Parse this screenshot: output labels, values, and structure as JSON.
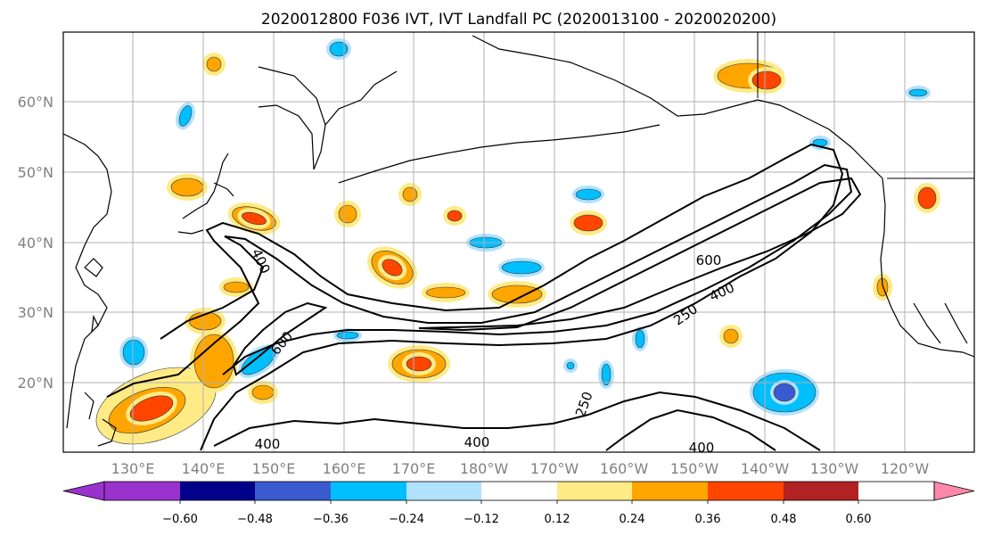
{
  "title": "2020012800 F036 IVT, IVT Landfall PC (2020013100 - 2020020200)",
  "map": {
    "lon_range": [
      "125°E",
      "115°W"
    ],
    "lat_range": [
      "10°N",
      "70°N"
    ],
    "lat_ticks": [
      "20°N",
      "30°N",
      "40°N",
      "50°N",
      "60°N"
    ],
    "lon_ticks": [
      "130°E",
      "140°E",
      "150°E",
      "160°E",
      "170°E",
      "180°W",
      "170°W",
      "160°W",
      "150°W",
      "140°W",
      "130°W",
      "120°W"
    ],
    "grid": true,
    "contour_labels": [
      "600",
      "400",
      "250",
      "600",
      "400",
      "400",
      "400",
      "400",
      "250"
    ]
  },
  "colorbar": {
    "colors": [
      "#9932CC",
      "#00008B",
      "#3A5BCF",
      "#00BFFF",
      "#B0E2FF",
      "#FFFFFF",
      "#FFEB85",
      "#FFA500",
      "#FF4500",
      "#B22222",
      "#FF88AA"
    ],
    "tick_labels": [
      "−0.60",
      "−0.48",
      "−0.36",
      "−0.24",
      "−0.12",
      "0.12",
      "0.24",
      "0.36",
      "0.48",
      "0.60"
    ],
    "extend": "both"
  }
}
